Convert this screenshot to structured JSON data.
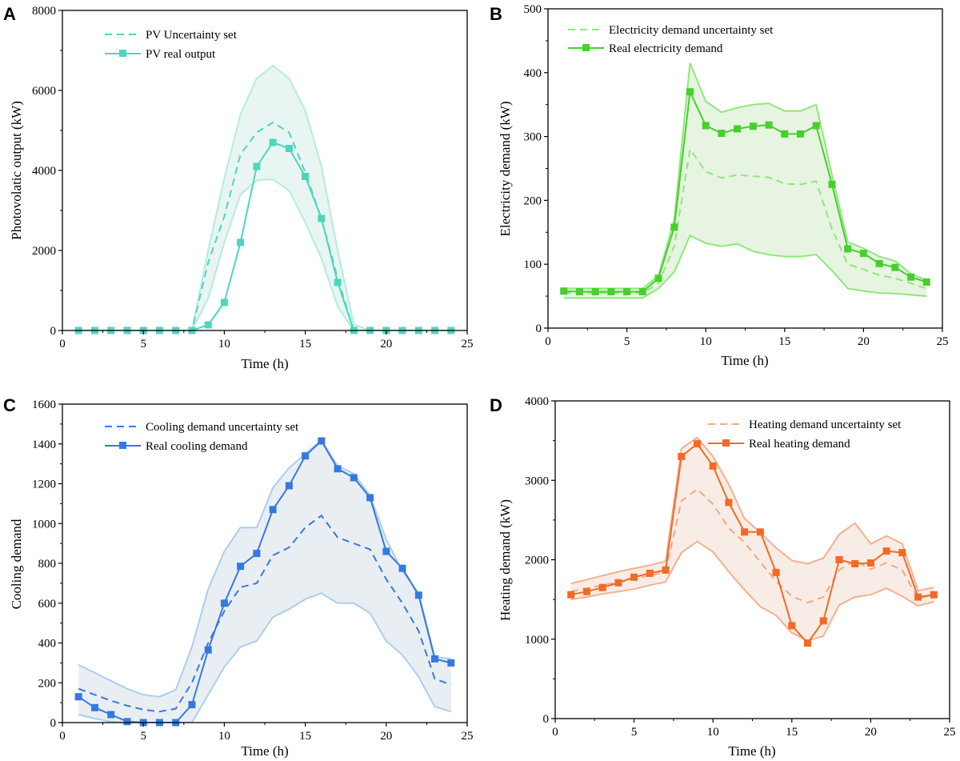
{
  "chart_data": [
    {
      "id": "A",
      "type": "line",
      "panel_label": "A",
      "xlabel": "Time (h)",
      "ylabel": "Photovolatic output (kW)",
      "xlim": [
        0,
        25
      ],
      "ylim": [
        0,
        8000
      ],
      "xticks": [
        0,
        5,
        10,
        15,
        20,
        25
      ],
      "yticks": [
        0,
        2000,
        4000,
        6000,
        8000
      ],
      "colors": {
        "band": "#b3ece0",
        "band_fill": "#e9f5f2",
        "uncertainty": "#4dd6bd",
        "real": "#4dd6bd"
      },
      "legend": {
        "uncertainty": "PV Uncertainty set",
        "real": "PV real output"
      },
      "x": [
        1,
        2,
        3,
        4,
        5,
        6,
        7,
        8,
        9,
        10,
        11,
        12,
        13,
        14,
        15,
        16,
        17,
        18,
        19,
        20,
        21,
        22,
        23,
        24
      ],
      "series": [
        {
          "name": "upper",
          "role": "band_upper",
          "values": [
            0,
            0,
            0,
            0,
            0,
            0,
            0,
            0,
            2000,
            3800,
            5400,
            6300,
            6620,
            6300,
            5500,
            4100,
            2000,
            150,
            0,
            0,
            0,
            0,
            0,
            0
          ]
        },
        {
          "name": "lower",
          "role": "band_lower",
          "values": [
            0,
            0,
            0,
            0,
            0,
            0,
            0,
            0,
            800,
            2200,
            3400,
            3750,
            3780,
            3500,
            2700,
            1800,
            600,
            0,
            0,
            0,
            0,
            0,
            0,
            0
          ]
        },
        {
          "name": "PV Uncertainty set",
          "role": "uncertainty",
          "values": [
            0,
            0,
            0,
            0,
            0,
            0,
            0,
            0,
            1700,
            2850,
            4400,
            4950,
            5200,
            4950,
            3950,
            2800,
            1300,
            0,
            0,
            0,
            0,
            0,
            0,
            0
          ]
        },
        {
          "name": "PV real output",
          "role": "real",
          "values": [
            0,
            0,
            0,
            0,
            0,
            0,
            0,
            0,
            140,
            700,
            2200,
            4100,
            4700,
            4550,
            3850,
            2800,
            1200,
            0,
            0,
            0,
            0,
            0,
            0,
            0
          ]
        }
      ]
    },
    {
      "id": "B",
      "type": "line",
      "panel_label": "B",
      "xlabel": "Time (h)",
      "ylabel": "Electricity demand (kW)",
      "xlim": [
        0,
        25
      ],
      "ylim": [
        0,
        500
      ],
      "xticks": [
        0,
        5,
        10,
        15,
        20,
        25
      ],
      "yticks": [
        0,
        100,
        200,
        300,
        400,
        500
      ],
      "colors": {
        "band": "#8ee87a",
        "band_fill": "#e6f4e1",
        "uncertainty": "#8ee87a",
        "real": "#46d02b"
      },
      "legend": {
        "uncertainty": "Electricity demand uncertainty set",
        "real": "Real electricity demand"
      },
      "x": [
        1,
        2,
        3,
        4,
        5,
        6,
        7,
        8,
        9,
        10,
        11,
        12,
        13,
        14,
        15,
        16,
        17,
        18,
        19,
        20,
        21,
        22,
        23,
        24
      ],
      "series": [
        {
          "name": "upper",
          "role": "band_upper",
          "values": [
            62,
            62,
            62,
            62,
            62,
            62,
            82,
            170,
            415,
            355,
            338,
            345,
            350,
            352,
            340,
            340,
            350,
            240,
            135,
            125,
            112,
            105,
            85,
            75
          ]
        },
        {
          "name": "lower",
          "role": "band_lower",
          "values": [
            47,
            47,
            47,
            47,
            47,
            47,
            62,
            88,
            145,
            133,
            128,
            132,
            120,
            115,
            112,
            112,
            115,
            90,
            62,
            58,
            55,
            54,
            52,
            50
          ]
        },
        {
          "name": "Electricity demand uncertainty set",
          "role": "uncertainty",
          "values": [
            55,
            55,
            55,
            55,
            55,
            55,
            70,
            128,
            280,
            245,
            235,
            240,
            238,
            236,
            226,
            225,
            230,
            155,
            100,
            92,
            83,
            78,
            70,
            62
          ]
        },
        {
          "name": "Real electricity demand",
          "role": "real",
          "values": [
            58,
            57,
            57,
            57,
            57,
            57,
            78,
            158,
            370,
            317,
            305,
            312,
            316,
            318,
            304,
            304,
            317,
            225,
            124,
            117,
            101,
            95,
            80,
            72
          ]
        }
      ]
    },
    {
      "id": "C",
      "type": "line",
      "panel_label": "C",
      "xlabel": "Time (h)",
      "ylabel": "Cooling demand",
      "xlim": [
        0,
        25
      ],
      "ylim": [
        0,
        1600
      ],
      "xticks": [
        0,
        5,
        10,
        15,
        20,
        25
      ],
      "yticks": [
        0,
        200,
        400,
        600,
        800,
        1000,
        1200,
        1400,
        1600
      ],
      "colors": {
        "band": "#a9cff1",
        "band_fill": "#e9eef3",
        "uncertainty": "#3579e0",
        "real": "#3579e0"
      },
      "legend": {
        "uncertainty": "Cooling demand uncertainty set",
        "real": "Real cooling demand"
      },
      "x": [
        1,
        2,
        3,
        4,
        5,
        6,
        7,
        8,
        9,
        10,
        11,
        12,
        13,
        14,
        15,
        16,
        17,
        18,
        19,
        20,
        21,
        22,
        23,
        24
      ],
      "series": [
        {
          "name": "upper",
          "role": "band_upper",
          "values": [
            290,
            250,
            210,
            170,
            140,
            130,
            165,
            380,
            670,
            860,
            980,
            980,
            1180,
            1280,
            1350,
            1420,
            1290,
            1250,
            1140,
            920,
            760,
            650,
            330,
            320
          ]
        },
        {
          "name": "lower",
          "role": "band_lower",
          "values": [
            40,
            20,
            5,
            0,
            0,
            0,
            0,
            0,
            140,
            280,
            380,
            410,
            530,
            570,
            620,
            650,
            600,
            600,
            550,
            410,
            340,
            230,
            80,
            55
          ]
        },
        {
          "name": "Cooling demand uncertainty set",
          "role": "uncertainty",
          "values": [
            170,
            140,
            110,
            85,
            65,
            55,
            70,
            200,
            400,
            560,
            680,
            700,
            840,
            880,
            980,
            1040,
            930,
            900,
            870,
            720,
            600,
            460,
            220,
            190
          ]
        },
        {
          "name": "Real cooling demand",
          "role": "real",
          "values": [
            130,
            75,
            40,
            5,
            0,
            0,
            0,
            90,
            365,
            600,
            785,
            850,
            1070,
            1190,
            1340,
            1415,
            1275,
            1230,
            1130,
            860,
            775,
            640,
            320,
            300
          ]
        }
      ]
    },
    {
      "id": "D",
      "type": "line",
      "panel_label": "D",
      "xlabel": "Time (h)",
      "ylabel": "Heating demand (kW)",
      "xlim": [
        0,
        25
      ],
      "ylim": [
        0,
        4000
      ],
      "xticks": [
        0,
        5,
        10,
        15,
        20,
        25
      ],
      "yticks": [
        0,
        1000,
        2000,
        3000,
        4000
      ],
      "colors": {
        "band": "#f4b08e",
        "band_fill": "#f8ece6",
        "uncertainty": "#f4a882",
        "real": "#f26a25"
      },
      "legend": {
        "uncertainty": "Heating demand uncertainty set",
        "real": "Real heating demand"
      },
      "x": [
        1,
        2,
        3,
        4,
        5,
        6,
        7,
        8,
        9,
        10,
        11,
        12,
        13,
        14,
        15,
        16,
        17,
        18,
        19,
        20,
        21,
        22,
        23,
        24
      ],
      "series": [
        {
          "name": "upper",
          "role": "band_upper",
          "values": [
            1700,
            1750,
            1800,
            1850,
            1890,
            1930,
            1980,
            3400,
            3540,
            3300,
            2950,
            2520,
            2340,
            2150,
            1990,
            1950,
            2020,
            2320,
            2460,
            2200,
            2300,
            2200,
            1610,
            1650
          ]
        },
        {
          "name": "lower",
          "role": "band_lower",
          "values": [
            1500,
            1530,
            1570,
            1600,
            1630,
            1680,
            1720,
            2090,
            2230,
            2100,
            1850,
            1620,
            1410,
            1300,
            1080,
            980,
            1040,
            1430,
            1530,
            1560,
            1640,
            1540,
            1420,
            1470
          ]
        },
        {
          "name": "Heating demand uncertainty set",
          "role": "uncertainty",
          "values": [
            1600,
            1640,
            1680,
            1720,
            1760,
            1800,
            1850,
            2740,
            2890,
            2700,
            2400,
            2220,
            1970,
            1730,
            1540,
            1460,
            1530,
            1870,
            1990,
            1880,
            1960,
            1870,
            1510,
            1560
          ]
        },
        {
          "name": "Real heating demand",
          "role": "real",
          "values": [
            1560,
            1600,
            1650,
            1710,
            1780,
            1830,
            1870,
            3300,
            3460,
            3180,
            2720,
            2350,
            2350,
            1840,
            1170,
            950,
            1230,
            2000,
            1950,
            1960,
            2110,
            2090,
            1530,
            1560
          ]
        }
      ]
    }
  ]
}
